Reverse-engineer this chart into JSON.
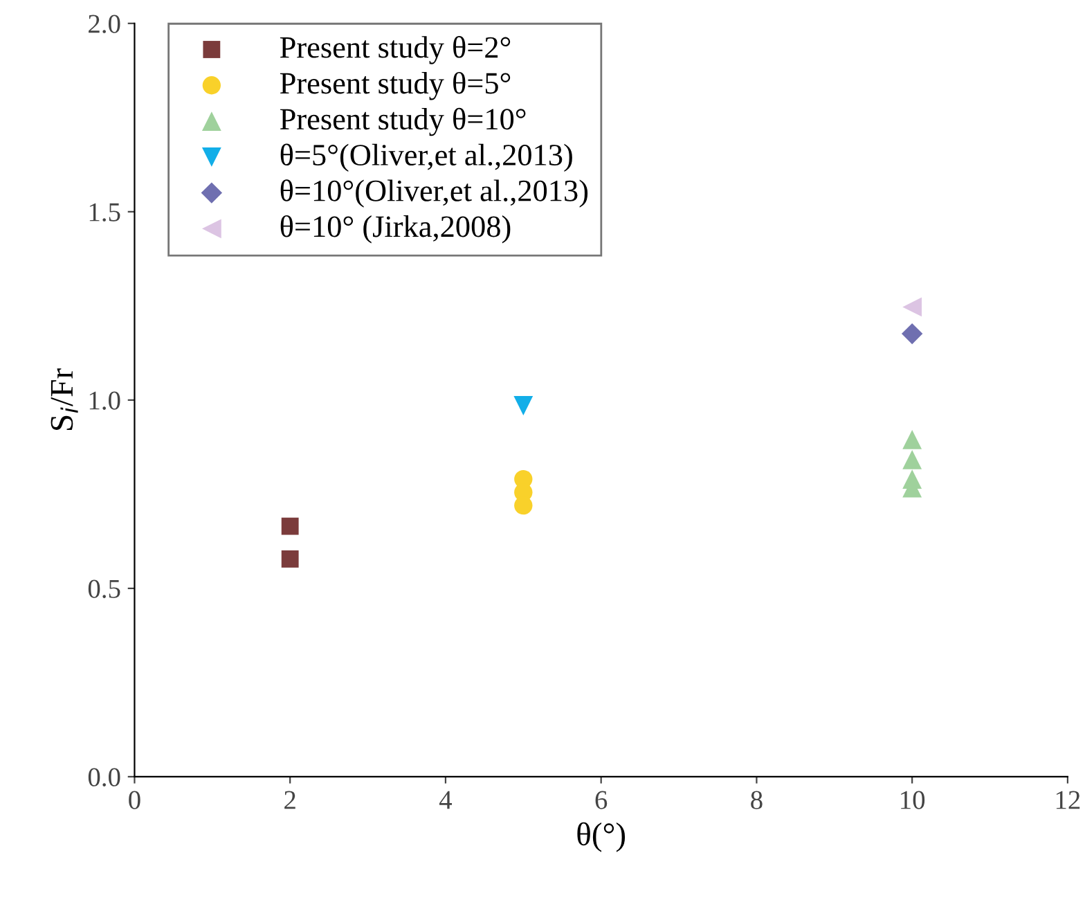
{
  "chart_data": {
    "type": "scatter",
    "xlabel": "θ(°)",
    "ylabel": "S$_{i}$/Fr",
    "xlim": [
      0,
      12
    ],
    "ylim": [
      0,
      2.0
    ],
    "xticks": [
      0,
      2,
      4,
      6,
      8,
      10,
      12
    ],
    "yticks": [
      {
        "value": 0,
        "label": "0.0"
      },
      0.5,
      {
        "value": 1,
        "label": "1.0"
      },
      1.5,
      {
        "value": 2,
        "label": "2.0"
      }
    ],
    "grid": false,
    "legend": "top left",
    "series": [
      {
        "name": "Present study θ=2°",
        "color": "#7b3b3b",
        "marker": "square",
        "x": [
          2,
          2
        ],
        "values": [
          0.665,
          0.578
        ]
      },
      {
        "name": "Present study θ=5°",
        "color": "#f9d12a",
        "marker": "circle",
        "x": [
          5,
          5,
          5
        ],
        "values": [
          0.79,
          0.755,
          0.72
        ]
      },
      {
        "name": "Present study θ=10°",
        "color": "#9fd19c",
        "marker": "triangle",
        "x": [
          10,
          10,
          10,
          10
        ],
        "values": [
          0.895,
          0.842,
          0.79,
          0.767
        ]
      },
      {
        "name": "θ=5°(Oliver,et al.,2013)",
        "color": "#12aee8",
        "marker": "triangle_down",
        "x": [
          5
        ],
        "values": [
          0.985
        ]
      },
      {
        "name": "θ=10°(Oliver,et al.,2013)",
        "color": "#6f6fb0",
        "marker": "diamond",
        "x": [
          10
        ],
        "values": [
          1.176
        ]
      },
      {
        "name": "θ=10° (Jirka,2008)",
        "color": "#dcc4e3",
        "marker": "triangle_left",
        "x": [
          10
        ],
        "values": [
          1.247
        ]
      }
    ]
  }
}
